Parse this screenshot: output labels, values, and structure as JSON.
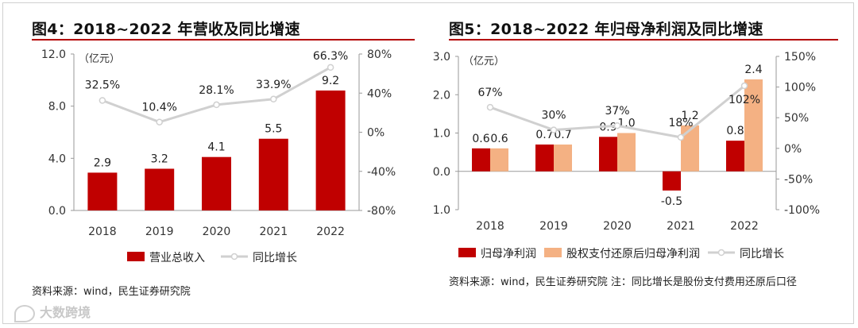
{
  "left": {
    "title": "图4：2018~2022 年营收及同比增速",
    "source": "资料来源：wind，民生证券研究院",
    "chart_data": {
      "type": "bar+line",
      "title": "图4：2018~2022 年营收及同比增速",
      "unit_label": "（亿元）",
      "categories": [
        "2018",
        "2019",
        "2020",
        "2021",
        "2022"
      ],
      "series": [
        {
          "name": "营业总收入",
          "kind": "bar",
          "axis": "left",
          "values": [
            2.9,
            3.2,
            4.1,
            5.5,
            9.2
          ],
          "labels": [
            "2.9",
            "3.2",
            "4.1",
            "5.5",
            "9.2"
          ],
          "color": "#c00000"
        },
        {
          "name": "同比增长",
          "kind": "line",
          "axis": "right",
          "values": [
            32.5,
            10.4,
            28.1,
            33.9,
            66.3
          ],
          "labels": [
            "32.5%",
            "10.4%",
            "28.1%",
            "33.9%",
            "66.3%"
          ],
          "color": "#d0d0d0"
        }
      ],
      "left_axis": {
        "min": 0,
        "max": 12,
        "ticks": [
          0,
          4,
          8,
          12
        ],
        "tick_labels": [
          "0.0",
          "4.0",
          "8.0",
          "12.0"
        ]
      },
      "right_axis": {
        "min": -80,
        "max": 80,
        "ticks": [
          -80,
          -40,
          0,
          40,
          80
        ],
        "tick_labels": [
          "-80%",
          "-40%",
          "0%",
          "40%",
          "80%"
        ]
      },
      "legend": [
        "营业总收入",
        "同比增长"
      ],
      "legend_position": "bottom"
    }
  },
  "right": {
    "title": "图5：2018~2022 年归母净利润及同比增速",
    "source": "资料来源：wind，民生证券研究院   注：同比增长是股份支付费用还原后口径",
    "chart_data": {
      "type": "bar+line",
      "title": "图5：2018~2022 年归母净利润及同比增速",
      "unit_label": "（亿元）",
      "categories": [
        "2018",
        "2019",
        "2020",
        "2021",
        "2022"
      ],
      "series": [
        {
          "name": "归母净利润",
          "kind": "bar",
          "axis": "left",
          "values": [
            0.6,
            0.7,
            0.9,
            -0.5,
            0.8
          ],
          "labels": [
            "0.6",
            "0.7",
            "0.9",
            "-0.5",
            "0.8"
          ],
          "color": "#c00000"
        },
        {
          "name": "股权支付还原后归母净利润",
          "kind": "bar",
          "axis": "left",
          "values": [
            0.6,
            0.7,
            1.0,
            1.2,
            2.4
          ],
          "labels": [
            "0.6",
            "0.7",
            "1.0",
            "1.2",
            "2.4"
          ],
          "color": "#f4b183"
        },
        {
          "name": "同比增长",
          "kind": "line",
          "axis": "right",
          "values": [
            67,
            30,
            37,
            18,
            102
          ],
          "labels": [
            "67%",
            "30%",
            "37%",
            "18%",
            "102%"
          ],
          "color": "#d0d0d0"
        }
      ],
      "left_axis": {
        "min": -1,
        "max": 3,
        "ticks": [
          -1,
          0,
          1,
          2,
          3
        ],
        "tick_labels": [
          "-1.0",
          "0.0",
          "1.0",
          "2.0",
          "3.0"
        ]
      },
      "right_axis": {
        "min": -100,
        "max": 150,
        "ticks": [
          -100,
          -50,
          0,
          50,
          100,
          150
        ],
        "tick_labels": [
          "-100%",
          "-50%",
          "0%",
          "50%",
          "100%",
          "150%"
        ]
      },
      "legend": [
        "归母净利润",
        "股权支付还原后归母净利润",
        "同比增长"
      ],
      "legend_position": "bottom"
    }
  },
  "watermark": "大数跨境"
}
